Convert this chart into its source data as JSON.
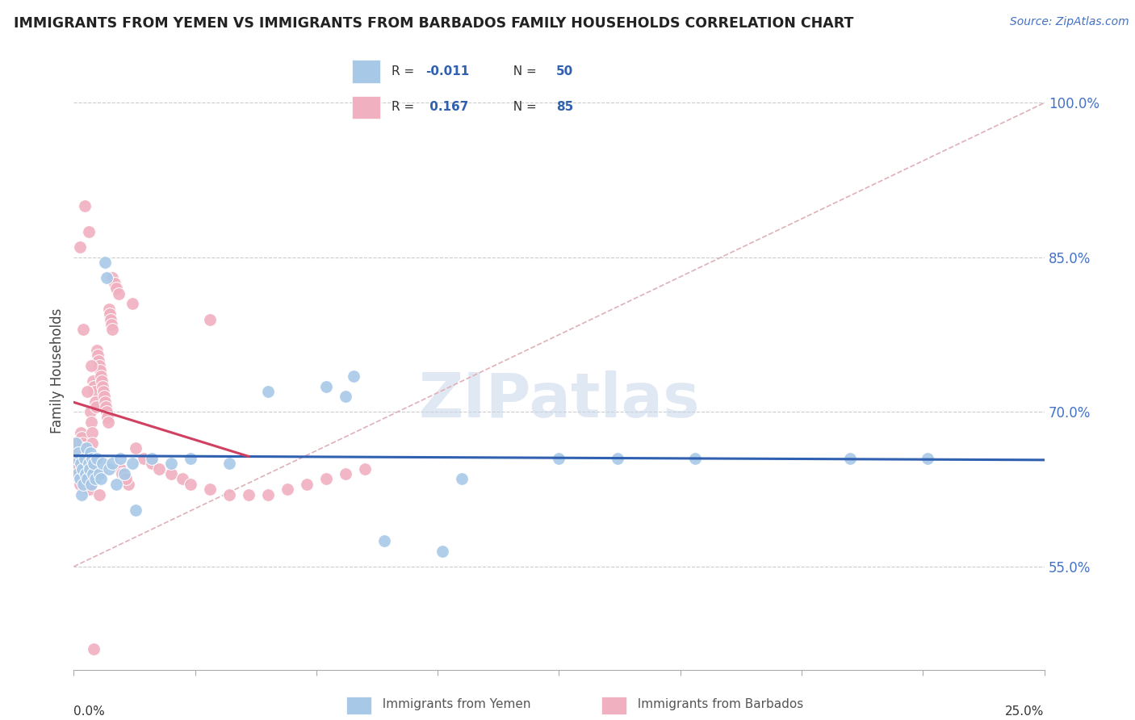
{
  "title": "IMMIGRANTS FROM YEMEN VS IMMIGRANTS FROM BARBADOS FAMILY HOUSEHOLDS CORRELATION CHART",
  "source": "Source: ZipAtlas.com",
  "ylabel": "Family Households",
  "xmin": 0.0,
  "xmax": 25.0,
  "ymin": 45.0,
  "ymax": 103.0,
  "yticks": [
    55.0,
    70.0,
    85.0,
    100.0
  ],
  "ytick_labels": [
    "55.0%",
    "70.0%",
    "85.0%",
    "100.0%"
  ],
  "yemen_color": "#a8c8e8",
  "barbados_color": "#f0b0c0",
  "yemen_line_color": "#3060b0",
  "barbados_line_color": "#d04060",
  "diag_line_color": "#e0b0b8",
  "watermark": "ZIPatlas",
  "legend_R_yemen": "R = -0.011",
  "legend_N_yemen": "N = 50",
  "legend_R_barbados": "R =  0.167",
  "legend_N_barbados": "N = 85",
  "yemen_x": [
    0.05,
    0.08,
    0.1,
    0.12,
    0.15,
    0.18,
    0.2,
    0.22,
    0.25,
    0.28,
    0.3,
    0.32,
    0.35,
    0.38,
    0.4,
    0.42,
    0.45,
    0.48,
    0.5,
    0.52,
    0.55,
    0.6,
    0.65,
    0.7,
    0.75,
    0.8,
    0.85,
    0.9,
    1.0,
    1.1,
    1.2,
    1.3,
    1.5,
    1.6,
    2.0,
    2.5,
    3.0,
    4.0,
    5.0,
    6.5,
    7.0,
    7.2,
    8.0,
    9.5,
    10.0,
    12.5,
    14.0,
    16.0,
    20.0,
    22.0
  ],
  "yemen_y": [
    67.0,
    65.5,
    64.0,
    66.0,
    63.5,
    65.0,
    62.0,
    64.5,
    63.0,
    65.5,
    64.0,
    66.5,
    63.5,
    65.0,
    64.5,
    66.0,
    63.0,
    65.5,
    64.0,
    65.0,
    63.5,
    65.5,
    64.0,
    63.5,
    65.0,
    84.5,
    83.0,
    64.5,
    65.0,
    63.0,
    65.5,
    64.0,
    65.0,
    60.5,
    65.5,
    65.0,
    65.5,
    65.0,
    72.0,
    72.5,
    71.5,
    73.5,
    57.5,
    56.5,
    63.5,
    65.5,
    65.5,
    65.5,
    65.5,
    65.5
  ],
  "barbados_x": [
    0.02,
    0.04,
    0.06,
    0.08,
    0.1,
    0.12,
    0.14,
    0.16,
    0.18,
    0.2,
    0.22,
    0.24,
    0.26,
    0.28,
    0.3,
    0.32,
    0.34,
    0.36,
    0.38,
    0.4,
    0.42,
    0.44,
    0.46,
    0.48,
    0.5,
    0.52,
    0.54,
    0.56,
    0.58,
    0.6,
    0.62,
    0.64,
    0.66,
    0.68,
    0.7,
    0.72,
    0.74,
    0.76,
    0.78,
    0.8,
    0.82,
    0.84,
    0.86,
    0.88,
    0.9,
    0.92,
    0.94,
    0.96,
    0.98,
    1.0,
    1.05,
    1.1,
    1.15,
    1.2,
    1.25,
    1.3,
    1.4,
    1.5,
    1.6,
    1.8,
    2.0,
    2.2,
    2.5,
    2.8,
    3.0,
    3.5,
    4.0,
    4.5,
    5.0,
    5.5,
    6.0,
    6.5,
    7.0,
    7.5,
    0.15,
    0.25,
    0.35,
    0.55,
    0.65,
    1.35,
    0.45,
    3.5,
    0.38,
    0.28,
    0.52
  ],
  "barbados_y": [
    67.0,
    66.0,
    65.5,
    65.0,
    64.5,
    64.0,
    63.5,
    63.0,
    68.0,
    67.5,
    67.0,
    66.5,
    66.0,
    65.5,
    65.0,
    64.5,
    64.0,
    63.5,
    63.0,
    62.5,
    70.0,
    69.0,
    68.0,
    67.0,
    73.0,
    72.5,
    72.0,
    71.0,
    70.5,
    76.0,
    75.5,
    75.0,
    74.5,
    74.0,
    73.5,
    73.0,
    72.5,
    72.0,
    71.5,
    71.0,
    70.5,
    70.0,
    69.5,
    69.0,
    80.0,
    79.5,
    79.0,
    78.5,
    78.0,
    83.0,
    82.5,
    82.0,
    81.5,
    64.5,
    64.0,
    63.5,
    63.0,
    80.5,
    66.5,
    65.5,
    65.0,
    64.5,
    64.0,
    63.5,
    63.0,
    62.5,
    62.0,
    62.0,
    62.0,
    62.5,
    63.0,
    63.5,
    64.0,
    64.5,
    86.0,
    78.0,
    72.0,
    64.0,
    62.0,
    63.5,
    74.5,
    79.0,
    87.5,
    90.0,
    47.0
  ]
}
